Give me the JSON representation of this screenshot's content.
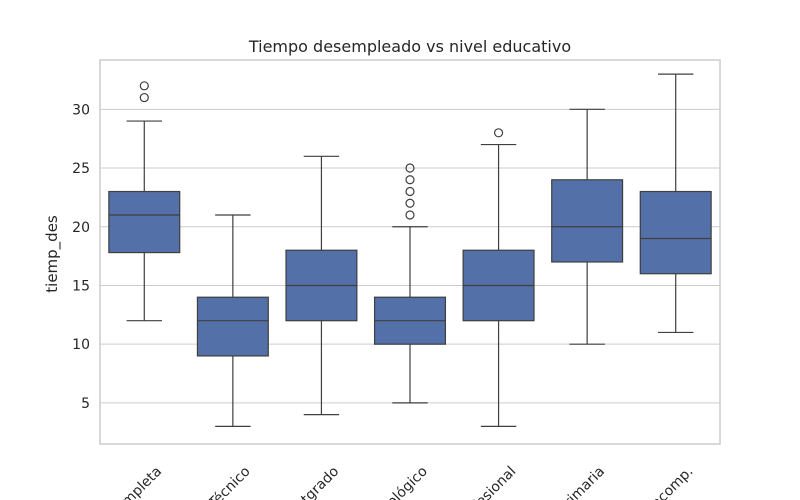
{
  "chart_data": {
    "type": "box",
    "title": "Tiempo desempleado vs nivel educativo",
    "xlabel": "",
    "ylabel": "tiemp_des",
    "ylim": [
      1.5,
      34.2
    ],
    "yticks": [
      5,
      10,
      15,
      20,
      25,
      30
    ],
    "grid": true,
    "box_color": "#5470a8",
    "categories": [
      "ompleta",
      "Técnico",
      "tgrado",
      "ológico",
      "fesional",
      "rimaria",
      "ncomp."
    ],
    "boxes": [
      {
        "whislo": 12,
        "q1": 17.8,
        "med": 21,
        "q3": 23,
        "whishi": 29,
        "fliers": [
          31,
          32
        ]
      },
      {
        "whislo": 3,
        "q1": 9,
        "med": 12,
        "q3": 14,
        "whishi": 21,
        "fliers": []
      },
      {
        "whislo": 4,
        "q1": 12,
        "med": 15,
        "q3": 18,
        "whishi": 26,
        "fliers": []
      },
      {
        "whislo": 5,
        "q1": 10,
        "med": 12,
        "q3": 14,
        "whishi": 20,
        "fliers": [
          21,
          22,
          23,
          24,
          25
        ]
      },
      {
        "whislo": 3,
        "q1": 12,
        "med": 15,
        "q3": 18,
        "whishi": 27,
        "fliers": [
          28
        ]
      },
      {
        "whislo": 10,
        "q1": 17,
        "med": 20,
        "q3": 24,
        "whishi": 30,
        "fliers": []
      },
      {
        "whislo": 11,
        "q1": 16,
        "med": 19,
        "q3": 23,
        "whishi": 33,
        "fliers": []
      }
    ]
  }
}
